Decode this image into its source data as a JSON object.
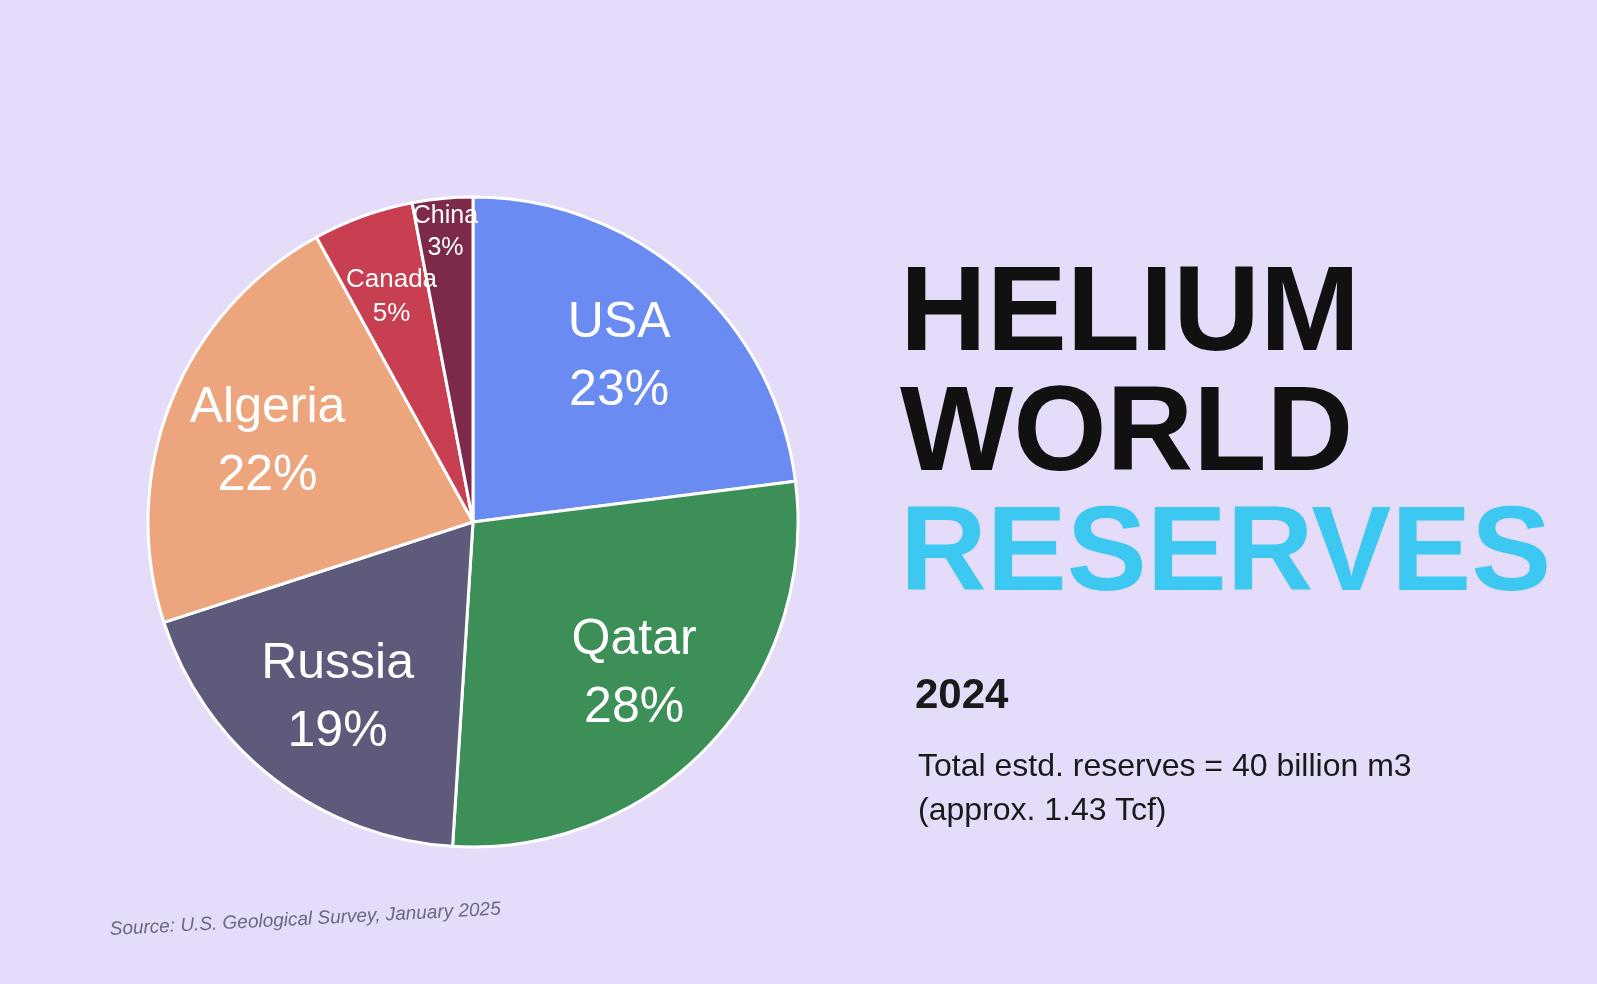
{
  "chart_data": {
    "type": "pie",
    "title": "HELIUM WORLD RESERVES",
    "subtitle": "2024",
    "categories": [
      "USA",
      "Qatar",
      "Russia",
      "Algeria",
      "Canada",
      "China"
    ],
    "values": [
      23,
      28,
      19,
      22,
      5,
      3
    ],
    "colors": [
      "#6a8cf2",
      "#3d8f58",
      "#5e5a7c",
      "#eda57e",
      "#c93f52",
      "#7d2a4a"
    ],
    "value_labels": [
      "23%",
      "28%",
      "19%",
      "22%",
      "5%",
      "3%"
    ],
    "annotations": [
      "Total estd. reserves = 40 billion m3 (approx. 1.43 Tcf)",
      "Source: U.S. Geological Survey, January 2025"
    ]
  }
}
